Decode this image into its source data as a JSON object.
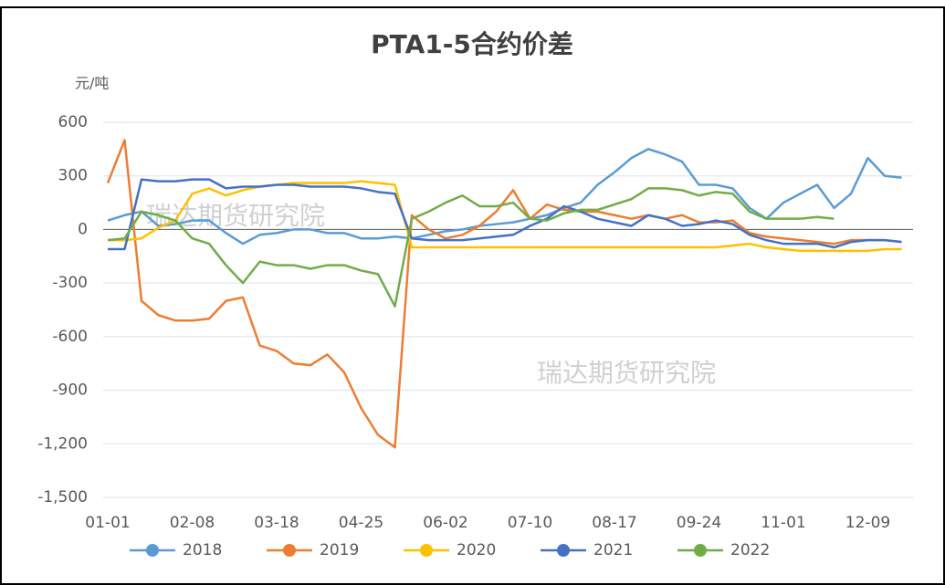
{
  "chart_data": {
    "type": "line",
    "title": "PTA1-5合约价差",
    "y_label": "元/吨",
    "watermark": [
      "瑞达期货研究院",
      "瑞达期货研究院"
    ],
    "categories": [
      "01-01",
      null,
      null,
      null,
      null,
      "02-08",
      null,
      null,
      null,
      null,
      "03-18",
      null,
      null,
      null,
      null,
      "04-25",
      null,
      null,
      null,
      null,
      "06-02",
      null,
      null,
      null,
      null,
      "07-10",
      null,
      null,
      null,
      null,
      "08-17",
      null,
      null,
      null,
      null,
      "09-24",
      null,
      null,
      null,
      null,
      "11-01",
      null,
      null,
      null,
      null,
      "12-09",
      null,
      null
    ],
    "series": [
      {
        "name": "2018",
        "color": "#5b9bd5",
        "values": [
          50,
          80,
          100,
          20,
          30,
          50,
          50,
          -20,
          -80,
          -30,
          -20,
          0,
          0,
          -20,
          -20,
          -50,
          -50,
          -40,
          -50,
          -30,
          -10,
          0,
          20,
          30,
          40,
          60,
          80,
          120,
          150,
          250,
          320,
          400,
          450,
          420,
          380,
          250,
          250,
          230,
          120,
          60,
          150,
          200,
          250,
          120,
          200,
          400,
          300,
          290
        ]
      },
      {
        "name": "2019",
        "color": "#ed7d31",
        "values": [
          260,
          500,
          -400,
          -480,
          -510,
          -510,
          -500,
          -400,
          -380,
          -650,
          -680,
          -750,
          -760,
          -700,
          -800,
          -1000,
          -1150,
          -1220,
          80,
          0,
          -50,
          -30,
          20,
          100,
          220,
          60,
          140,
          110,
          100,
          100,
          80,
          60,
          80,
          60,
          80,
          40,
          40,
          50,
          -20,
          -40,
          -50,
          -60,
          -70,
          -80,
          -60,
          -60,
          -60,
          -70
        ]
      },
      {
        "name": "2020",
        "color": "#ffc000",
        "values": [
          -60,
          -60,
          -50,
          10,
          50,
          200,
          230,
          190,
          220,
          240,
          250,
          260,
          260,
          260,
          260,
          270,
          260,
          250,
          -100,
          -100,
          -100,
          -100,
          -100,
          -100,
          -100,
          -100,
          -100,
          -100,
          -100,
          -100,
          -100,
          -100,
          -100,
          -100,
          -100,
          -100,
          -100,
          -90,
          -80,
          -100,
          -110,
          -120,
          -120,
          -120,
          -120,
          -120,
          -110,
          -110
        ]
      },
      {
        "name": "2021",
        "color": "#4472c4",
        "values": [
          -110,
          -110,
          280,
          270,
          270,
          280,
          280,
          230,
          240,
          240,
          250,
          250,
          240,
          240,
          240,
          230,
          210,
          200,
          -50,
          -60,
          -60,
          -60,
          -50,
          -40,
          -30,
          20,
          60,
          130,
          100,
          60,
          40,
          20,
          80,
          60,
          20,
          30,
          50,
          30,
          -30,
          -60,
          -80,
          -80,
          -80,
          -100,
          -70,
          -60,
          -60,
          -70
        ]
      },
      {
        "name": "2022",
        "color": "#70ad47",
        "values": [
          -60,
          -50,
          100,
          80,
          50,
          -50,
          -80,
          -200,
          -300,
          -180,
          -200,
          -200,
          -220,
          -200,
          -200,
          -230,
          -250,
          -430,
          60,
          100,
          150,
          190,
          130,
          130,
          150,
          60,
          50,
          90,
          110,
          110,
          140,
          170,
          230,
          230,
          220,
          190,
          210,
          200,
          100,
          60,
          60,
          60,
          70,
          60,
          null,
          null,
          null,
          null
        ]
      }
    ],
    "ylim": [
      -1500,
      600
    ],
    "yticks": [
      {
        "value": -1500,
        "label": "-1,500"
      },
      {
        "value": -1200,
        "label": "-1,200"
      },
      -900,
      -600,
      -300,
      0,
      300,
      600
    ],
    "grid": true,
    "legend": "bottom"
  }
}
